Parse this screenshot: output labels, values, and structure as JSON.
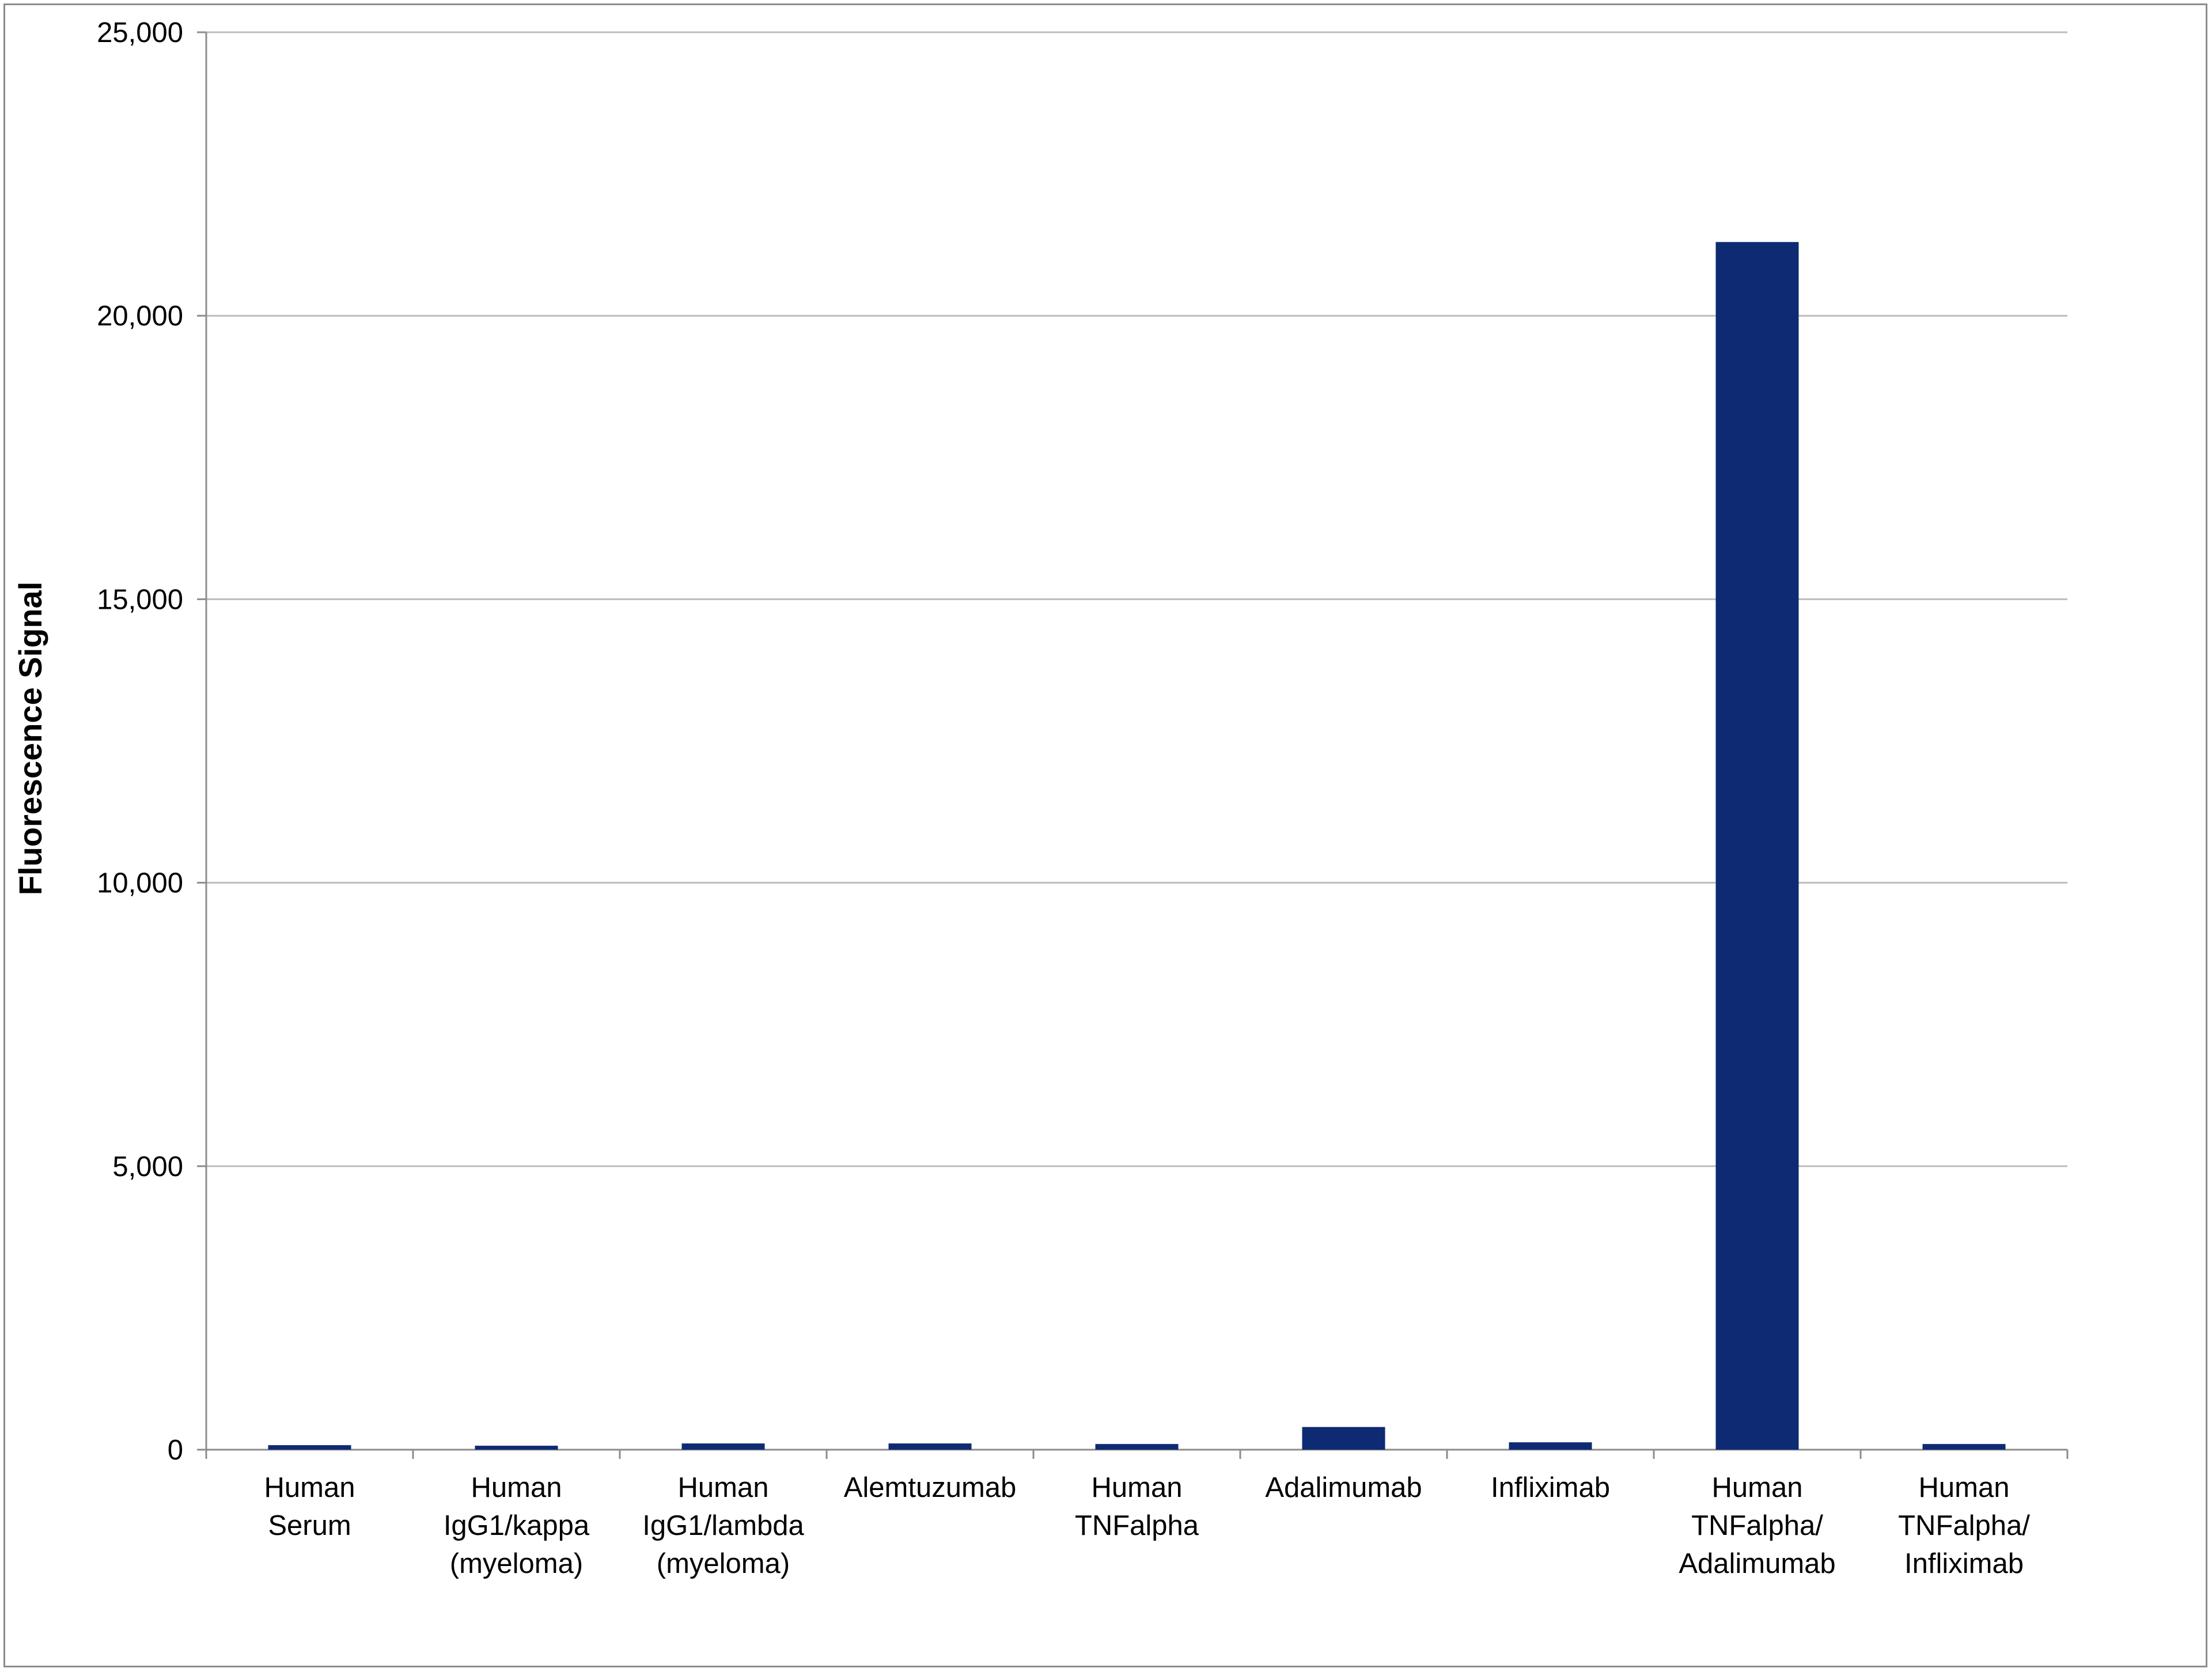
{
  "chart_data": {
    "type": "bar",
    "title": "",
    "xlabel": "",
    "ylabel": "Fluorescence Signal",
    "ylim": [
      0,
      25000
    ],
    "yticks": [
      0,
      5000,
      10000,
      15000,
      20000,
      25000
    ],
    "ytick_labels": [
      "0",
      "5,000",
      "10,000",
      "15,000",
      "20,000",
      "25,000"
    ],
    "grid": "horizontal",
    "legend": "none",
    "bar_color": "#0e2a73",
    "categories": [
      [
        "Human",
        "Serum"
      ],
      [
        "Human",
        "IgG1/kappa",
        "(myeloma)"
      ],
      [
        "Human",
        "IgG1/lambda",
        "(myeloma)"
      ],
      [
        "Alemtuzumab"
      ],
      [
        "Human",
        "TNFalpha"
      ],
      [
        "Adalimumab"
      ],
      [
        "Infliximab"
      ],
      [
        "Human",
        "TNFalpha/",
        "Adalimumab"
      ],
      [
        "Human",
        "TNFalpha/",
        "Infliximab"
      ]
    ],
    "values": [
      80,
      70,
      110,
      110,
      100,
      400,
      130,
      21300,
      100
    ]
  }
}
